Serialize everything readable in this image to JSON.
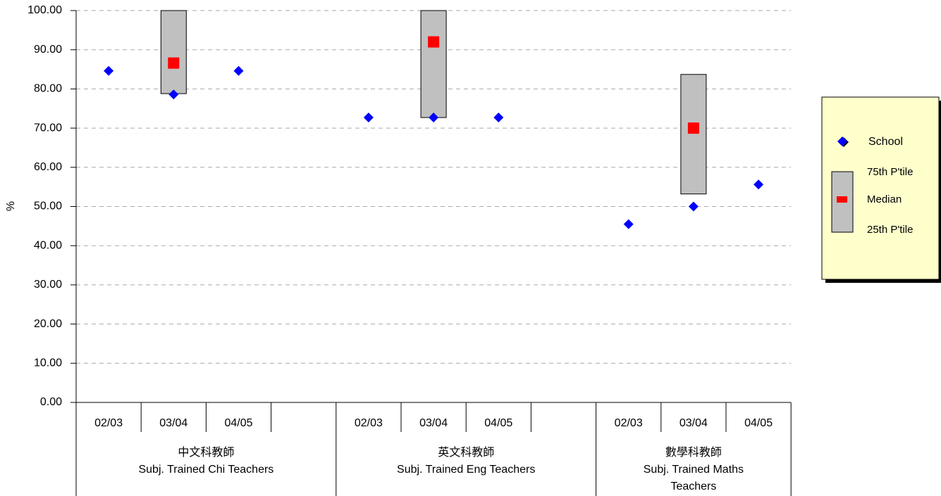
{
  "chart_data": {
    "type": "box",
    "y_label": "%",
    "categories": [
      "02/03",
      "03/04",
      "04/05",
      null,
      "02/03",
      "03/04",
      "04/05",
      null,
      "02/03",
      "03/04",
      "04/05"
    ],
    "groups": [
      {
        "lines": [
          "中文科教師",
          "Subj. Trained Chi Teachers"
        ]
      },
      {
        "lines": [
          "英文科教師",
          "Subj. Trained Eng Teachers"
        ]
      },
      {
        "lines": [
          "數學科教師",
          "Subj. Trained Maths",
          "Teachers"
        ]
      }
    ],
    "series": [
      {
        "name": "School",
        "color": "#0000ff",
        "values": [
          84.6,
          78.6,
          84.6,
          null,
          72.7,
          72.7,
          72.7,
          null,
          45.5,
          50.0,
          55.6
        ]
      },
      {
        "name": "75th P'tile",
        "color": "#c0c0c0",
        "values": [
          null,
          100,
          null,
          null,
          null,
          100,
          null,
          null,
          null,
          83.7,
          null
        ]
      },
      {
        "name": "Median",
        "color": "#ff0000",
        "values": [
          null,
          86.6,
          null,
          null,
          null,
          92.0,
          null,
          null,
          null,
          70.0,
          null
        ]
      },
      {
        "name": "25th P'tile",
        "color": "#c0c0c0",
        "values": [
          null,
          78.8,
          null,
          null,
          null,
          72.7,
          null,
          null,
          null,
          53.2,
          null
        ]
      }
    ],
    "ylim": [
      0,
      100
    ],
    "yticks": [
      {
        "value": 0,
        "label": "0.00"
      },
      {
        "value": 10,
        "label": "10.00"
      },
      {
        "value": 20,
        "label": "20.00"
      },
      {
        "value": 30,
        "label": "30.00"
      },
      {
        "value": 40,
        "label": "40.00"
      },
      {
        "value": 50,
        "label": "50.00"
      },
      {
        "value": 60,
        "label": "60.00"
      },
      {
        "value": 70,
        "label": "70.00"
      },
      {
        "value": 80,
        "label": "80.00"
      },
      {
        "value": 90,
        "label": "90.00"
      },
      {
        "value": 100,
        "label": "100.00"
      }
    ],
    "grid": true
  }
}
